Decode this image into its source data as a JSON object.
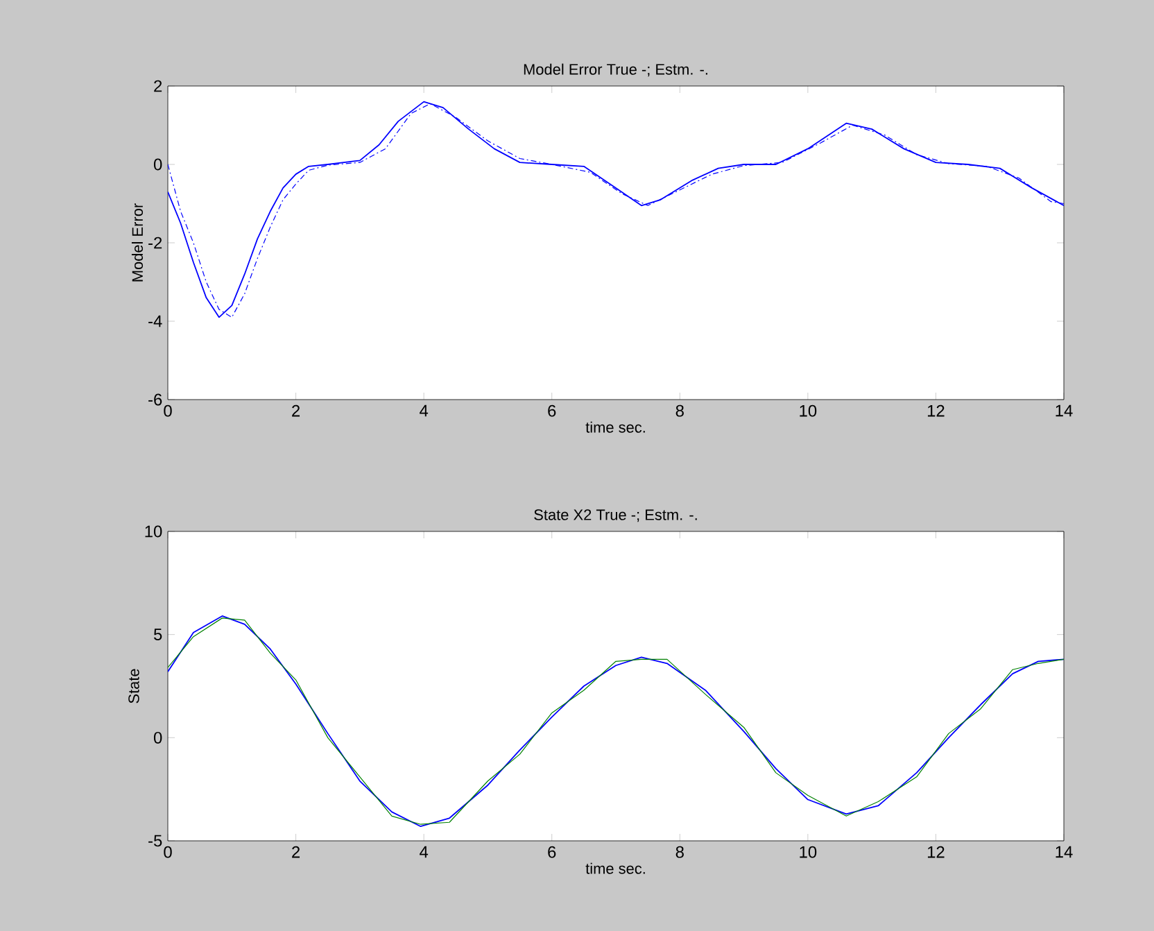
{
  "chart_data": [
    {
      "type": "line",
      "title": "Model Error True -; Estm. -.",
      "xlabel": "time sec.",
      "ylabel": "Model Error",
      "xlim": [
        0,
        14
      ],
      "ylim": [
        -6,
        2
      ],
      "xticks": [
        0,
        2,
        4,
        6,
        8,
        10,
        12,
        14
      ],
      "yticks": [
        -6,
        -4,
        -2,
        0,
        2
      ],
      "grid": false,
      "series": [
        {
          "color": "#0000ff",
          "line_style": "solid",
          "x": [
            0,
            0.2,
            0.4,
            0.6,
            0.8,
            1.0,
            1.2,
            1.4,
            1.6,
            1.8,
            2.0,
            2.2,
            2.5,
            3.0,
            3.3,
            3.6,
            4.0,
            4.3,
            4.7,
            5.1,
            5.5,
            6.0,
            6.5,
            7.0,
            7.4,
            7.7,
            8.2,
            8.6,
            9.0,
            9.5,
            10.0,
            10.6,
            11.0,
            11.5,
            12.0,
            12.5,
            13.0,
            13.5,
            14.0
          ],
          "values": [
            -0.7,
            -1.5,
            -2.5,
            -3.4,
            -3.9,
            -3.6,
            -2.8,
            -1.9,
            -1.2,
            -0.6,
            -0.25,
            -0.05,
            0,
            0.1,
            0.5,
            1.1,
            1.6,
            1.45,
            0.9,
            0.4,
            0.05,
            0,
            -0.05,
            -0.6,
            -1.05,
            -0.9,
            -0.4,
            -0.1,
            0,
            0,
            0.4,
            1.05,
            0.9,
            0.4,
            0.05,
            0,
            -0.1,
            -0.6,
            -1.05
          ]
        },
        {
          "color": "#0000ff",
          "line_style": "dashdot",
          "x": [
            0,
            0.2,
            0.4,
            0.6,
            0.8,
            1.0,
            1.2,
            1.4,
            1.6,
            1.8,
            2.0,
            2.2,
            2.5,
            3.0,
            3.4,
            3.8,
            4.1,
            4.5,
            5.0,
            5.5,
            6.0,
            6.6,
            7.1,
            7.5,
            8.0,
            8.5,
            9.0,
            9.6,
            10.2,
            10.7,
            11.2,
            11.7,
            12.2,
            12.8,
            13.3,
            13.8,
            14.0
          ],
          "values": [
            0,
            -1.2,
            -2.0,
            -3.0,
            -3.7,
            -3.9,
            -3.3,
            -2.4,
            -1.6,
            -0.9,
            -0.5,
            -0.15,
            -0.02,
            0.05,
            0.4,
            1.3,
            1.55,
            1.2,
            0.6,
            0.15,
            0,
            -0.2,
            -0.75,
            -1.05,
            -0.65,
            -0.25,
            -0.03,
            0.05,
            0.55,
            1.0,
            0.75,
            0.25,
            0.02,
            -0.05,
            -0.35,
            -0.95,
            -1.0
          ]
        }
      ]
    },
    {
      "type": "line",
      "title": "State X2 True -; Estm. -.",
      "xlabel": "time sec.",
      "ylabel": "State",
      "xlim": [
        0,
        14
      ],
      "ylim": [
        -5,
        10
      ],
      "xticks": [
        0,
        2,
        4,
        6,
        8,
        10,
        12,
        14
      ],
      "yticks": [
        -5,
        0,
        5,
        10
      ],
      "grid": false,
      "series": [
        {
          "color": "#0000ff",
          "line_style": "solid",
          "x": [
            0,
            0.4,
            0.85,
            1.2,
            1.6,
            2.0,
            2.5,
            3.0,
            3.5,
            3.95,
            4.4,
            5.0,
            5.5,
            6.0,
            6.5,
            7.0,
            7.4,
            7.8,
            8.4,
            9.0,
            9.5,
            10.0,
            10.6,
            11.1,
            11.7,
            12.2,
            12.7,
            13.2,
            13.6,
            14.0
          ],
          "values": [
            3.2,
            5.1,
            5.9,
            5.5,
            4.3,
            2.6,
            0.2,
            -2.1,
            -3.6,
            -4.3,
            -3.9,
            -2.3,
            -0.6,
            1.0,
            2.5,
            3.5,
            3.9,
            3.6,
            2.3,
            0.3,
            -1.5,
            -3.0,
            -3.7,
            -3.3,
            -1.7,
            0.0,
            1.6,
            3.1,
            3.7,
            3.8
          ]
        },
        {
          "color": "#008000",
          "line_style": "solid",
          "x": [
            0,
            0.4,
            0.85,
            1.2,
            1.6,
            2.0,
            2.5,
            3.0,
            3.5,
            3.95,
            4.4,
            5.0,
            5.5,
            6.0,
            6.5,
            7.0,
            7.4,
            7.8,
            8.4,
            9.0,
            9.5,
            10.0,
            10.6,
            11.1,
            11.7,
            12.2,
            12.7,
            13.2,
            13.6,
            14.0
          ],
          "values": [
            3.4,
            4.9,
            5.8,
            5.7,
            4.1,
            2.8,
            0.0,
            -1.9,
            -3.8,
            -4.2,
            -4.1,
            -2.1,
            -0.8,
            1.2,
            2.3,
            3.7,
            3.8,
            3.8,
            2.1,
            0.5,
            -1.7,
            -2.8,
            -3.8,
            -3.1,
            -1.9,
            0.2,
            1.4,
            3.3,
            3.6,
            3.8
          ]
        }
      ]
    }
  ]
}
